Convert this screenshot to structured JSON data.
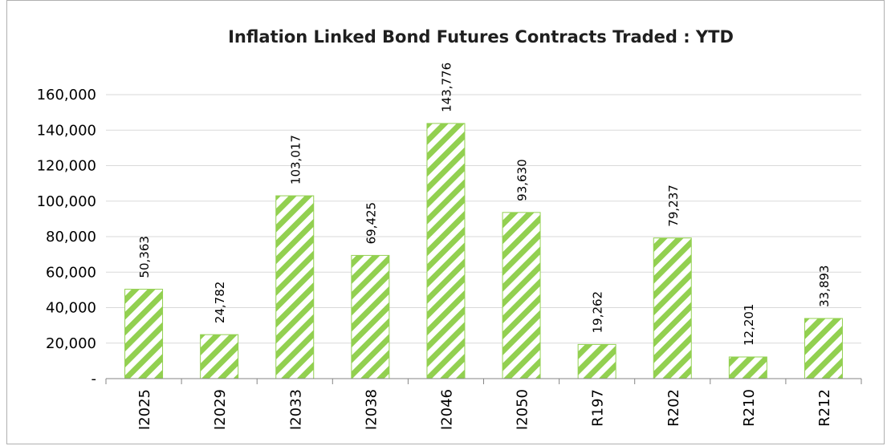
{
  "chart_data": {
    "type": "bar",
    "title": "Inflation Linked Bond Futures Contracts Traded : YTD",
    "xlabel": "",
    "ylabel": "",
    "categories": [
      "I2025",
      "I2029",
      "I2033",
      "I2038",
      "I2046",
      "I2050",
      "R197",
      "R202",
      "R210",
      "R212"
    ],
    "values": [
      50363,
      24782,
      103017,
      69425,
      143776,
      93630,
      19262,
      79237,
      12201,
      33893
    ],
    "data_labels": [
      "50,363",
      "24,782",
      "103,017",
      "69,425",
      "143,776",
      "93,630",
      "19,262",
      "79,237",
      "12,201",
      "33,893"
    ],
    "ylim": [
      0,
      160000
    ],
    "yticks": [
      0,
      20000,
      40000,
      60000,
      80000,
      100000,
      120000,
      140000,
      160000
    ],
    "ytick_labels": [
      "-",
      "20,000",
      "40,000",
      "60,000",
      "80,000",
      "100,000",
      "120,000",
      "140,000",
      "160,000"
    ],
    "grid": true,
    "legend": "none",
    "colors": {
      "bar_stripe": "#92d050",
      "bar_background": "#ffffff",
      "bar_border": "#92d050",
      "gridline": "#d9d9d9",
      "axis": "#868686"
    }
  }
}
